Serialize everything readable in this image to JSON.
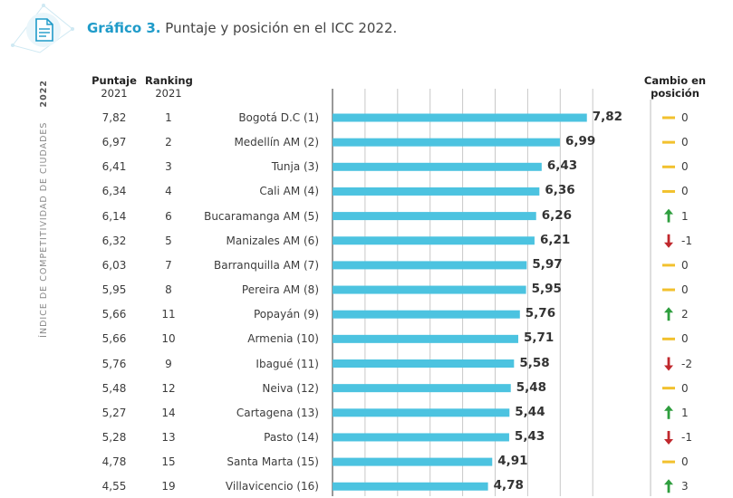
{
  "header": {
    "figure_label": "Gráfico 3.",
    "title": "Puntaje y posición en el ICC 2022.",
    "side_year": "2022",
    "side_text": "ÍNDICE DE COMPETITIVIDAD DE CIUDADES",
    "col_score_line1": "Puntaje",
    "col_score_line2": "2021",
    "col_rank_line1": "Ranking",
    "col_rank_line2": "2021",
    "col_change_line1": "Cambio en",
    "col_change_line2": "posición"
  },
  "colors": {
    "bar": "#4cc3e0",
    "grid": "#c8c8c8",
    "axis": "#555555",
    "up": "#2e9e3e",
    "down": "#c0282d",
    "neutral": "#f2c12e",
    "accent": "#1f9bc9"
  },
  "chart_data": {
    "type": "bar",
    "orientation": "horizontal",
    "title": "Puntaje y posición en el ICC 2022.",
    "xlim": [
      0,
      8
    ],
    "grid": true,
    "categories": [
      "Bogotá D.C (1)",
      "Medellín AM (2)",
      "Tunja (3)",
      "Cali AM (4)",
      "Bucaramanga AM (5)",
      "Manizales AM (6)",
      "Barranquilla AM (7)",
      "Pereira AM (8)",
      "Popayán (9)",
      "Armenia (10)",
      "Ibagué (11)",
      "Neiva (12)",
      "Cartagena (13)",
      "Pasto (14)",
      "Santa Marta (15)",
      "Villavicencio (16)"
    ],
    "rows": [
      {
        "city": "Bogotá D.C",
        "rank_label": "(1)",
        "score_2022": 7.82,
        "score_label": "7,82",
        "score_2021": "7,82",
        "rank_2021": "1",
        "change": "0",
        "trend": "neutral"
      },
      {
        "city": "Medellín AM",
        "rank_label": "(2)",
        "score_2022": 6.99,
        "score_label": "6,99",
        "score_2021": "6,97",
        "rank_2021": "2",
        "change": "0",
        "trend": "neutral"
      },
      {
        "city": "Tunja",
        "rank_label": "(3)",
        "score_2022": 6.43,
        "score_label": "6,43",
        "score_2021": "6,41",
        "rank_2021": "3",
        "change": "0",
        "trend": "neutral"
      },
      {
        "city": "Cali AM",
        "rank_label": "(4)",
        "score_2022": 6.36,
        "score_label": "6,36",
        "score_2021": "6,34",
        "rank_2021": "4",
        "change": "0",
        "trend": "neutral"
      },
      {
        "city": "Bucaramanga AM",
        "rank_label": "(5)",
        "score_2022": 6.26,
        "score_label": "6,26",
        "score_2021": "6,14",
        "rank_2021": "6",
        "change": "1",
        "trend": "up"
      },
      {
        "city": "Manizales AM",
        "rank_label": "(6)",
        "score_2022": 6.21,
        "score_label": "6,21",
        "score_2021": "6,32",
        "rank_2021": "5",
        "change": "-1",
        "trend": "down"
      },
      {
        "city": "Barranquilla AM",
        "rank_label": "(7)",
        "score_2022": 5.97,
        "score_label": "5,97",
        "score_2021": "6,03",
        "rank_2021": "7",
        "change": "0",
        "trend": "neutral"
      },
      {
        "city": "Pereira AM",
        "rank_label": "(8)",
        "score_2022": 5.95,
        "score_label": "5,95",
        "score_2021": "5,95",
        "rank_2021": "8",
        "change": "0",
        "trend": "neutral"
      },
      {
        "city": "Popayán",
        "rank_label": "(9)",
        "score_2022": 5.76,
        "score_label": "5,76",
        "score_2021": "5,66",
        "rank_2021": "11",
        "change": "2",
        "trend": "up"
      },
      {
        "city": "Armenia",
        "rank_label": "(10)",
        "score_2022": 5.71,
        "score_label": "5,71",
        "score_2021": "5,66",
        "rank_2021": "10",
        "change": "0",
        "trend": "neutral"
      },
      {
        "city": "Ibagué",
        "rank_label": "(11)",
        "score_2022": 5.58,
        "score_label": "5,58",
        "score_2021": "5,76",
        "rank_2021": "9",
        "change": "-2",
        "trend": "down"
      },
      {
        "city": "Neiva",
        "rank_label": "(12)",
        "score_2022": 5.48,
        "score_label": "5,48",
        "score_2021": "5,48",
        "rank_2021": "12",
        "change": "0",
        "trend": "neutral"
      },
      {
        "city": "Cartagena",
        "rank_label": "(13)",
        "score_2022": 5.44,
        "score_label": "5,44",
        "score_2021": "5,27",
        "rank_2021": "14",
        "change": "1",
        "trend": "up"
      },
      {
        "city": "Pasto",
        "rank_label": "(14)",
        "score_2022": 5.43,
        "score_label": "5,43",
        "score_2021": "5,28",
        "rank_2021": "13",
        "change": "-1",
        "trend": "down"
      },
      {
        "city": "Santa Marta",
        "rank_label": "(15)",
        "score_2022": 4.91,
        "score_label": "4,91",
        "score_2021": "4,78",
        "rank_2021": "15",
        "change": "0",
        "trend": "neutral"
      },
      {
        "city": "Villavicencio",
        "rank_label": "(16)",
        "score_2022": 4.78,
        "score_label": "4,78",
        "score_2021": "4,55",
        "rank_2021": "19",
        "change": "3",
        "trend": "up"
      }
    ]
  }
}
